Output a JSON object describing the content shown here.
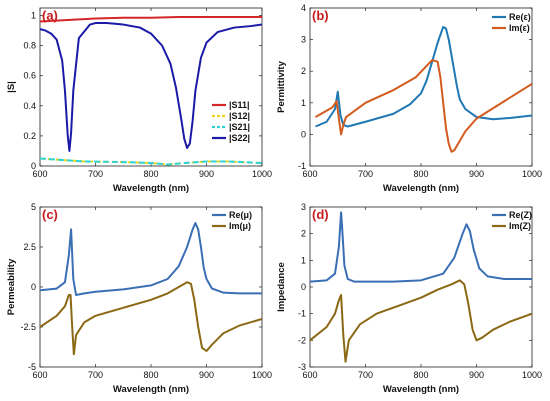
{
  "chart_data": [
    {
      "type": "line",
      "panel_label": "(a)",
      "xlabel": "Wavelength (nm)",
      "ylabel": "|S|",
      "xlim": [
        600,
        1000
      ],
      "ylim": [
        0,
        1.05
      ],
      "xticks": [
        "600",
        "700",
        "800",
        "900",
        "1000"
      ],
      "xtick_values": [
        600,
        700,
        800,
        900,
        1000
      ],
      "yticks": [
        "0",
        "0.2",
        "0.4",
        "0.6",
        "0.8",
        "1"
      ],
      "ytick_values": [
        0,
        0.2,
        0.4,
        0.6,
        0.8,
        1.0
      ],
      "legend_position": "center-right",
      "series": [
        {
          "name": "|S11|",
          "color": "#d62728",
          "dash": "",
          "x": [
            600,
            650,
            700,
            750,
            800,
            850,
            900,
            950,
            1000
          ],
          "y": [
            0.96,
            0.97,
            0.98,
            0.985,
            0.985,
            0.99,
            0.99,
            0.99,
            0.99
          ]
        },
        {
          "name": "|S12|",
          "color": "#f2d51a",
          "dash": "5,3",
          "x": [
            600,
            640,
            680,
            720,
            760,
            800,
            830,
            860,
            900,
            940,
            1000
          ],
          "y": [
            0.05,
            0.04,
            0.03,
            0.028,
            0.025,
            0.02,
            0.01,
            0.02,
            0.03,
            0.03,
            0.02
          ]
        },
        {
          "name": "|S21|",
          "color": "#2fd3d3",
          "dash": "6,3",
          "x": [
            600,
            640,
            680,
            720,
            760,
            800,
            830,
            860,
            900,
            940,
            1000
          ],
          "y": [
            0.05,
            0.04,
            0.03,
            0.028,
            0.025,
            0.02,
            0.01,
            0.02,
            0.03,
            0.03,
            0.02
          ]
        },
        {
          "name": "|S22|",
          "color": "#1a1aa6",
          "dash": "",
          "x": [
            600,
            610,
            620,
            630,
            640,
            645,
            650,
            653,
            656,
            660,
            670,
            690,
            700,
            720,
            750,
            780,
            800,
            820,
            835,
            845,
            855,
            860,
            865,
            870,
            875,
            880,
            890,
            900,
            920,
            950,
            980,
            1000
          ],
          "y": [
            0.91,
            0.9,
            0.88,
            0.84,
            0.7,
            0.5,
            0.2,
            0.1,
            0.22,
            0.5,
            0.85,
            0.94,
            0.95,
            0.95,
            0.94,
            0.92,
            0.88,
            0.8,
            0.68,
            0.52,
            0.3,
            0.18,
            0.12,
            0.15,
            0.3,
            0.5,
            0.72,
            0.82,
            0.89,
            0.92,
            0.93,
            0.94
          ]
        }
      ]
    },
    {
      "type": "line",
      "panel_label": "(b)",
      "xlabel": "Wavelength (nm)",
      "ylabel": "Permittivity",
      "xlim": [
        600,
        1000
      ],
      "ylim": [
        -1,
        4
      ],
      "xticks": [
        "600",
        "700",
        "800",
        "900",
        "1000"
      ],
      "xtick_values": [
        600,
        700,
        800,
        900,
        1000
      ],
      "yticks": [
        "-1",
        "0",
        "1",
        "2",
        "3",
        "4"
      ],
      "ytick_values": [
        -1,
        0,
        1,
        2,
        3,
        4
      ],
      "legend_position": "top-right",
      "series": [
        {
          "name": "Re(ε)",
          "color": "#1f77b4",
          "dash": "",
          "x": [
            610,
            630,
            645,
            650,
            655,
            660,
            668,
            700,
            750,
            780,
            800,
            810,
            820,
            830,
            840,
            845,
            850,
            858,
            865,
            870,
            880,
            900,
            930,
            960,
            1000
          ],
          "y": [
            0.25,
            0.4,
            0.8,
            1.35,
            0.6,
            0.3,
            0.25,
            0.4,
            0.65,
            0.95,
            1.3,
            1.7,
            2.3,
            2.9,
            3.4,
            3.35,
            3.0,
            2.2,
            1.5,
            1.1,
            0.8,
            0.55,
            0.48,
            0.52,
            0.6
          ]
        },
        {
          "name": "Im(ε)",
          "color": "#d35b1e",
          "dash": "",
          "x": [
            610,
            640,
            648,
            652,
            656,
            660,
            665,
            700,
            750,
            790,
            820,
            830,
            835,
            840,
            845,
            850,
            855,
            860,
            870,
            880,
            900,
            950,
            1000
          ],
          "y": [
            0.55,
            0.85,
            1.05,
            0.5,
            0.0,
            0.3,
            0.55,
            1.0,
            1.4,
            1.8,
            2.35,
            2.3,
            1.8,
            1.0,
            0.2,
            -0.3,
            -0.55,
            -0.5,
            -0.2,
            0.1,
            0.5,
            1.05,
            1.6
          ]
        }
      ]
    },
    {
      "type": "line",
      "panel_label": "(c)",
      "xlabel": "Wavelength (nm)",
      "ylabel": "Permeability",
      "xlim": [
        600,
        1000
      ],
      "ylim": [
        -5,
        5
      ],
      "xticks": [
        "600",
        "700",
        "800",
        "900",
        "1000"
      ],
      "xtick_values": [
        600,
        700,
        800,
        900,
        1000
      ],
      "yticks": [
        "-5",
        "-2.5",
        "0",
        "2.5",
        "5"
      ],
      "ytick_values": [
        -5,
        -2.5,
        0,
        2.5,
        5
      ],
      "legend_position": "top-right",
      "series": [
        {
          "name": "Re(μ)",
          "color": "#3a6fb5",
          "dash": "",
          "x": [
            600,
            630,
            645,
            652,
            656,
            660,
            665,
            680,
            700,
            750,
            800,
            830,
            850,
            865,
            875,
            880,
            885,
            890,
            895,
            900,
            910,
            930,
            960,
            1000
          ],
          "y": [
            -0.2,
            -0.1,
            0.3,
            2.0,
            3.6,
            0.5,
            -0.5,
            -0.4,
            -0.3,
            -0.15,
            0.1,
            0.5,
            1.3,
            2.5,
            3.6,
            4.0,
            3.6,
            2.5,
            1.2,
            0.5,
            -0.1,
            -0.35,
            -0.4,
            -0.4
          ]
        },
        {
          "name": "Im(μ)",
          "color": "#8b6914",
          "dash": "",
          "x": [
            600,
            630,
            645,
            652,
            655,
            658,
            661,
            665,
            680,
            700,
            750,
            800,
            830,
            850,
            865,
            872,
            878,
            885,
            892,
            900,
            910,
            930,
            960,
            1000
          ],
          "y": [
            -2.5,
            -1.8,
            -1.2,
            -0.5,
            -0.5,
            -2.5,
            -4.2,
            -3.0,
            -2.2,
            -1.8,
            -1.3,
            -0.8,
            -0.4,
            0.0,
            0.3,
            0.2,
            -0.8,
            -2.5,
            -3.8,
            -4.0,
            -3.6,
            -2.9,
            -2.4,
            -2.0
          ]
        }
      ]
    },
    {
      "type": "line",
      "panel_label": "(d)",
      "xlabel": "Wavelength (nm)",
      "ylabel": "Impedance",
      "xlim": [
        600,
        1000
      ],
      "ylim": [
        -3,
        3
      ],
      "xticks": [
        "600",
        "700",
        "800",
        "900",
        "1000"
      ],
      "xtick_values": [
        600,
        700,
        800,
        900,
        1000
      ],
      "yticks": [
        "-3",
        "-2",
        "-1",
        "0",
        "1",
        "2",
        "3"
      ],
      "ytick_values": [
        -3,
        -2,
        -1,
        0,
        1,
        2,
        3
      ],
      "legend_position": "top-right",
      "series": [
        {
          "name": "Re(Z)",
          "color": "#3a6fb5",
          "dash": "",
          "x": [
            600,
            630,
            645,
            652,
            656,
            658,
            662,
            668,
            680,
            700,
            750,
            800,
            840,
            860,
            875,
            882,
            888,
            895,
            905,
            920,
            950,
            1000
          ],
          "y": [
            0.2,
            0.25,
            0.5,
            1.5,
            2.8,
            2.2,
            0.8,
            0.3,
            0.2,
            0.2,
            0.2,
            0.25,
            0.5,
            1.1,
            2.0,
            2.35,
            2.1,
            1.4,
            0.7,
            0.4,
            0.3,
            0.3
          ]
        },
        {
          "name": "Im(Z)",
          "color": "#8b6914",
          "dash": "",
          "x": [
            600,
            630,
            645,
            652,
            656,
            660,
            664,
            670,
            690,
            720,
            760,
            800,
            830,
            855,
            870,
            878,
            885,
            893,
            900,
            910,
            930,
            960,
            1000
          ],
          "y": [
            -2.0,
            -1.5,
            -1.0,
            -0.5,
            -0.3,
            -1.8,
            -2.8,
            -2.0,
            -1.4,
            -1.0,
            -0.7,
            -0.4,
            -0.1,
            0.1,
            0.25,
            0.1,
            -0.6,
            -1.6,
            -2.0,
            -1.9,
            -1.6,
            -1.3,
            -1.0
          ]
        }
      ]
    }
  ]
}
